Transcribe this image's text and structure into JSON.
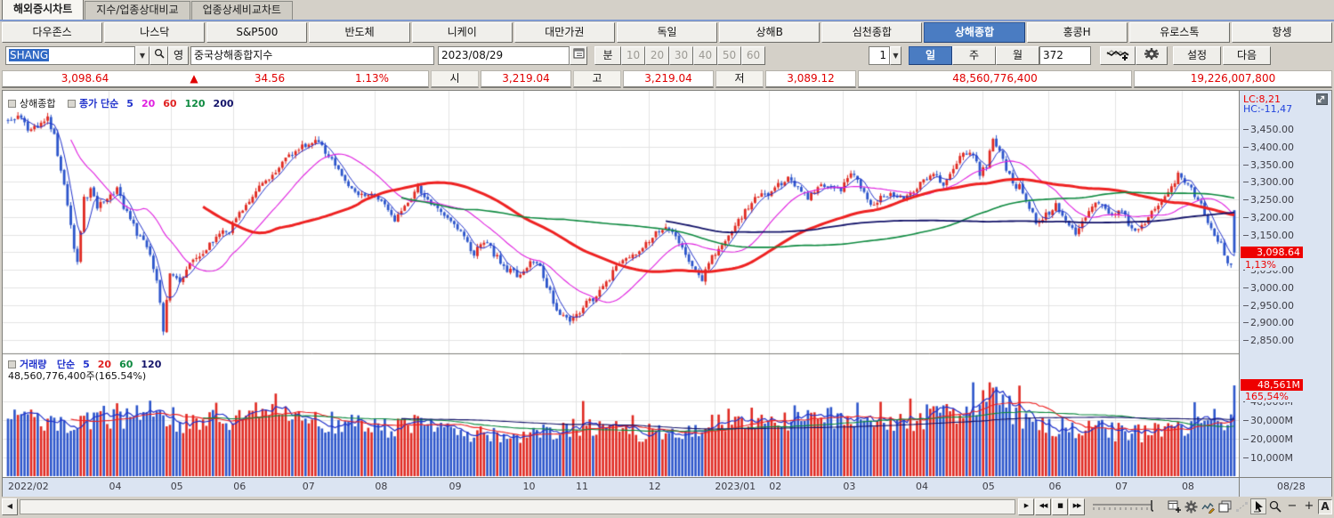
{
  "tabs": [
    {
      "label": "해외증시차트",
      "active": true
    },
    {
      "label": "지수/업종상대비교"
    },
    {
      "label": "업종상세비교차트"
    }
  ],
  "market_buttons": [
    {
      "label": "다우존스"
    },
    {
      "label": "나스닥"
    },
    {
      "label": "S&P500"
    },
    {
      "label": "반도체"
    },
    {
      "label": "니케이"
    },
    {
      "label": "대만가권"
    },
    {
      "label": "독일"
    },
    {
      "label": "상해B"
    },
    {
      "label": "심천종합"
    },
    {
      "label": "상해종합",
      "selected": true
    },
    {
      "label": "홍콩H"
    },
    {
      "label": "유로스톡"
    },
    {
      "label": "항셍"
    }
  ],
  "toolbar": {
    "symbol": "SHANG",
    "symbol_name": "중국상해종합지수",
    "date": "2023/08/29",
    "lang_button": "영",
    "minute_label": "분",
    "minute_options": [
      {
        "label": "10",
        "disabled": true
      },
      {
        "label": "20",
        "disabled": true
      },
      {
        "label": "30",
        "disabled": true
      },
      {
        "label": "40",
        "disabled": true
      },
      {
        "label": "50",
        "disabled": true
      },
      {
        "label": "60",
        "disabled": true
      }
    ],
    "count": "1",
    "periods": [
      {
        "label": "일",
        "selected": true
      },
      {
        "label": "주"
      },
      {
        "label": "월"
      }
    ],
    "bars": "372",
    "settings_label": "설정",
    "next_label": "다음"
  },
  "quote": {
    "price": "3,098.64",
    "arrow": "▲",
    "change": "34.56",
    "pct": "1.13%",
    "open_label": "시",
    "open": "3,219.04",
    "high_label": "고",
    "high": "3,219.04",
    "low_label": "저",
    "low": "3,089.12",
    "volume": "48,560,776,400",
    "amount": "19,226,007,800"
  },
  "price_panel": {
    "name": "상해종합",
    "ma_type": "종가 단순",
    "ma_periods": [
      {
        "label": "5",
        "color": "#2233cc"
      },
      {
        "label": "20",
        "color": "#e020e0"
      },
      {
        "label": "60",
        "color": "#e02222"
      },
      {
        "label": "120",
        "color": "#0e8a40"
      },
      {
        "label": "200",
        "color": "#14146a"
      }
    ],
    "lc": "LC:8,21",
    "hc": "HC:-11,47",
    "badge": "3,098.64",
    "badge_pct": "1,13%",
    "y_labels": [
      {
        "text": "3,450.00",
        "v": 3450
      },
      {
        "text": "3,400.00",
        "v": 3400
      },
      {
        "text": "3,350.00",
        "v": 3350
      },
      {
        "text": "3,300.00",
        "v": 3300
      },
      {
        "text": "3,250.00",
        "v": 3250
      },
      {
        "text": "3,200.00",
        "v": 3200
      },
      {
        "text": "3,150.00",
        "v": 3150
      },
      {
        "text": "3,050.00",
        "v": 3050
      },
      {
        "text": "3,000.00",
        "v": 3000
      },
      {
        "text": "2,950.00",
        "v": 2950
      },
      {
        "text": "2,900.00",
        "v": 2900
      },
      {
        "text": "2,850.00",
        "v": 2850
      }
    ]
  },
  "volume_panel": {
    "name": "거래량",
    "ma_type": "단순",
    "ma_periods": [
      {
        "label": "5",
        "color": "#2233cc"
      },
      {
        "label": "20",
        "color": "#e02222"
      },
      {
        "label": "60",
        "color": "#0e8a40"
      },
      {
        "label": "120",
        "color": "#14146a"
      }
    ],
    "info": "48,560,776,400주(165.54%)",
    "badge": "48,561M",
    "badge_pct": "165,54%",
    "y_labels": [
      {
        "text": "40,000M",
        "v": 40000
      },
      {
        "text": "30,000M",
        "v": 30000
      },
      {
        "text": "20,000M",
        "v": 20000
      },
      {
        "text": "10,000M",
        "v": 10000
      }
    ]
  },
  "x_axis": {
    "labels": [
      {
        "text": "2022/02",
        "f": 0.0
      },
      {
        "text": "04",
        "f": 0.082
      },
      {
        "text": "05",
        "f": 0.132
      },
      {
        "text": "06",
        "f": 0.183
      },
      {
        "text": "07",
        "f": 0.239
      },
      {
        "text": "08",
        "f": 0.298
      },
      {
        "text": "09",
        "f": 0.358
      },
      {
        "text": "10",
        "f": 0.418
      },
      {
        "text": "11",
        "f": 0.461
      },
      {
        "text": "12",
        "f": 0.52
      },
      {
        "text": "2023/01",
        "f": 0.574
      },
      {
        "text": "02",
        "f": 0.618
      },
      {
        "text": "03",
        "f": 0.678
      },
      {
        "text": "04",
        "f": 0.737
      },
      {
        "text": "05",
        "f": 0.791
      },
      {
        "text": "06",
        "f": 0.845
      },
      {
        "text": "07",
        "f": 0.899
      },
      {
        "text": "08",
        "f": 0.953
      }
    ],
    "end_label": "08/28"
  },
  "bottom": {
    "scroll_left": "◀",
    "nav": [
      {
        "g": "▶"
      },
      {
        "g": "◀◀"
      },
      {
        "g": "■"
      },
      {
        "g": "▶▶"
      }
    ],
    "zoom_out": "−",
    "zoom_in": "+",
    "auto": "A"
  },
  "chart_data": {
    "type": "candlestick",
    "title": "중국상해종합지수 (상해종합) 일봉",
    "days": 372,
    "prev_close": 3064.08,
    "last_candle": {
      "o": 3219.04,
      "h": 3219.04,
      "l": 3089.12,
      "c": 3098.64
    },
    "price_axis": {
      "min": 2850,
      "max": 3450,
      "step": 50
    },
    "volume_axis": {
      "step_m": 10000,
      "max_m": 50000
    },
    "ma_periods_price": [
      5,
      20,
      60,
      120,
      200
    ],
    "ma_periods_volume": [
      5,
      20,
      60,
      120
    ],
    "price_anchors": [
      [
        0,
        3470
      ],
      [
        3,
        3488
      ],
      [
        6,
        3448
      ],
      [
        9,
        3462
      ],
      [
        12,
        3478
      ],
      [
        14,
        3430
      ],
      [
        17,
        3285
      ],
      [
        19,
        3170
      ],
      [
        21,
        3064
      ],
      [
        23,
        3252
      ],
      [
        25,
        3270
      ],
      [
        27,
        3232
      ],
      [
        30,
        3255
      ],
      [
        33,
        3282
      ],
      [
        36,
        3205
      ],
      [
        39,
        3155
      ],
      [
        42,
        3122
      ],
      [
        45,
        3025
      ],
      [
        47,
        2886
      ],
      [
        48,
        2952
      ],
      [
        49,
        3047
      ],
      [
        52,
        3012
      ],
      [
        55,
        3068
      ],
      [
        58,
        3082
      ],
      [
        61,
        3122
      ],
      [
        64,
        3152
      ],
      [
        67,
        3162
      ],
      [
        68,
        3182
      ],
      [
        72,
        3232
      ],
      [
        76,
        3282
      ],
      [
        80,
        3322
      ],
      [
        84,
        3362
      ],
      [
        87,
        3392
      ],
      [
        89,
        3398
      ],
      [
        91,
        3406
      ],
      [
        93,
        3424
      ],
      [
        96,
        3385
      ],
      [
        100,
        3330
      ],
      [
        104,
        3282
      ],
      [
        108,
        3253
      ],
      [
        111,
        3262
      ],
      [
        114,
        3232
      ],
      [
        117,
        3186
      ],
      [
        120,
        3232
      ],
      [
        124,
        3282
      ],
      [
        127,
        3252
      ],
      [
        130,
        3222
      ],
      [
        133,
        3202
      ],
      [
        137,
        3152
      ],
      [
        141,
        3102
      ],
      [
        145,
        3122
      ],
      [
        149,
        3072
      ],
      [
        152,
        3042
      ],
      [
        155,
        3024
      ],
      [
        158,
        3082
      ],
      [
        161,
        3052
      ],
      [
        164,
        2982
      ],
      [
        167,
        2922
      ],
      [
        170,
        2893
      ],
      [
        174,
        2952
      ],
      [
        178,
        2972
      ],
      [
        181,
        3012
      ],
      [
        185,
        3072
      ],
      [
        189,
        3092
      ],
      [
        193,
        3122
      ],
      [
        196,
        3152
      ],
      [
        199,
        3168
      ],
      [
        203,
        3132
      ],
      [
        207,
        3062
      ],
      [
        210,
        3022
      ],
      [
        213,
        3089
      ],
      [
        216,
        3122
      ],
      [
        219,
        3162
      ],
      [
        222,
        3202
      ],
      [
        225,
        3242
      ],
      [
        228,
        3265
      ],
      [
        230,
        3255
      ],
      [
        233,
        3292
      ],
      [
        236,
        3310
      ],
      [
        239,
        3282
      ],
      [
        242,
        3252
      ],
      [
        245,
        3282
      ],
      [
        248,
        3292
      ],
      [
        252,
        3280
      ],
      [
        255,
        3330
      ],
      [
        258,
        3285
      ],
      [
        261,
        3232
      ],
      [
        264,
        3255
      ],
      [
        268,
        3265
      ],
      [
        271,
        3252
      ],
      [
        274,
        3273
      ],
      [
        277,
        3302
      ],
      [
        280,
        3322
      ],
      [
        283,
        3292
      ],
      [
        286,
        3332
      ],
      [
        289,
        3385
      ],
      [
        291,
        3395
      ],
      [
        294,
        3323
      ],
      [
        296,
        3352
      ],
      [
        298,
        3419
      ],
      [
        300,
        3382
      ],
      [
        303,
        3312
      ],
      [
        306,
        3282
      ],
      [
        309,
        3232
      ],
      [
        311,
        3182
      ],
      [
        314,
        3205
      ],
      [
        317,
        3232
      ],
      [
        320,
        3192
      ],
      [
        323,
        3152
      ],
      [
        326,
        3202
      ],
      [
        329,
        3242
      ],
      [
        332,
        3222
      ],
      [
        334,
        3202
      ],
      [
        337,
        3222
      ],
      [
        340,
        3162
      ],
      [
        343,
        3172
      ],
      [
        346,
        3212
      ],
      [
        349,
        3242
      ],
      [
        352,
        3282
      ],
      [
        354,
        3322
      ],
      [
        357,
        3292
      ],
      [
        359,
        3262
      ],
      [
        361,
        3232
      ],
      [
        363,
        3182
      ],
      [
        365,
        3152
      ],
      [
        367,
        3122
      ],
      [
        369,
        3066
      ],
      [
        370,
        3064.08
      ],
      [
        371,
        3098.64
      ]
    ],
    "volume_anchors": [
      [
        0,
        33000
      ],
      [
        10,
        30000
      ],
      [
        20,
        29000
      ],
      [
        30,
        31000
      ],
      [
        40,
        34000
      ],
      [
        46,
        38000
      ],
      [
        50,
        30000
      ],
      [
        57,
        28000
      ],
      [
        62,
        30000
      ],
      [
        68,
        29000
      ],
      [
        74,
        32000
      ],
      [
        78,
        34000
      ],
      [
        80,
        47000
      ],
      [
        81,
        38000
      ],
      [
        84,
        36000
      ],
      [
        88,
        34000
      ],
      [
        92,
        36000
      ],
      [
        95,
        30000
      ],
      [
        100,
        29000
      ],
      [
        105,
        27000
      ],
      [
        111,
        26000
      ],
      [
        120,
        25500
      ],
      [
        126,
        29000
      ],
      [
        133,
        24000
      ],
      [
        140,
        22500
      ],
      [
        147,
        21000
      ],
      [
        155,
        20000
      ],
      [
        160,
        22000
      ],
      [
        165,
        24000
      ],
      [
        171,
        26000
      ],
      [
        178,
        25000
      ],
      [
        185,
        24000
      ],
      [
        193,
        23000
      ],
      [
        200,
        22000
      ],
      [
        206,
        24000
      ],
      [
        213,
        27000
      ],
      [
        218,
        30000
      ],
      [
        224,
        32000
      ],
      [
        230,
        30000
      ],
      [
        237,
        31000
      ],
      [
        244,
        30000
      ],
      [
        252,
        31000
      ],
      [
        258,
        32000
      ],
      [
        264,
        30000
      ],
      [
        270,
        29000
      ],
      [
        274,
        30000
      ],
      [
        280,
        32000
      ],
      [
        286,
        34000
      ],
      [
        290,
        36000
      ],
      [
        294,
        40000
      ],
      [
        297,
        49000
      ],
      [
        299,
        42000
      ],
      [
        302,
        36000
      ],
      [
        306,
        32000
      ],
      [
        310,
        28000
      ],
      [
        314,
        26000
      ],
      [
        320,
        25000
      ],
      [
        326,
        24000
      ],
      [
        330,
        25000
      ],
      [
        334,
        24000
      ],
      [
        338,
        23000
      ],
      [
        342,
        22000
      ],
      [
        346,
        24000
      ],
      [
        350,
        25000
      ],
      [
        354,
        26000
      ],
      [
        358,
        27000
      ],
      [
        362,
        29000
      ],
      [
        366,
        30000
      ],
      [
        369,
        32000
      ],
      [
        370,
        31000
      ],
      [
        371,
        48561
      ]
    ],
    "colors": {
      "up": "#e02a22",
      "down": "#2c55cb",
      "grid": "#e3e3e3",
      "divider": "#7f7f7a",
      "ma5": "#2233cc",
      "ma20": "#e020e0",
      "ma60": "#ee2222",
      "ma120": "#0e8a40",
      "ma200": "#14146a",
      "vma5": "#2233cc",
      "vma20": "#ee2222",
      "vma60": "#0e8a40",
      "vma120": "#14146a"
    }
  }
}
